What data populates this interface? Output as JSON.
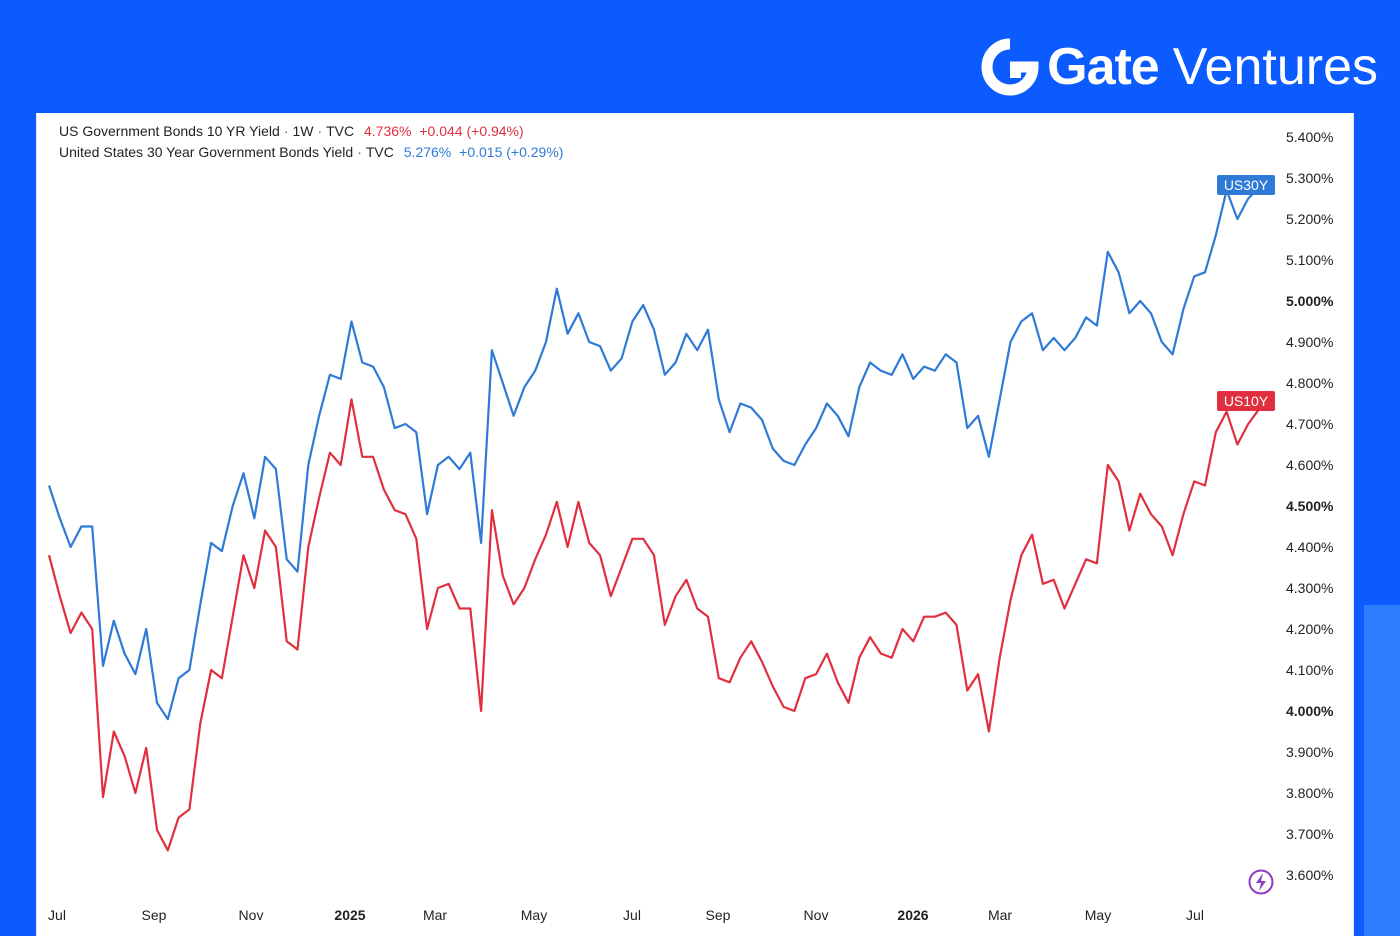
{
  "brand": {
    "name": "Gate",
    "suffix": "Ventures"
  },
  "colors": {
    "background": "#0b5bff",
    "us10y": "#e03040",
    "us30y": "#2f7ad6"
  },
  "legend": {
    "us10y": {
      "name": "US Government Bonds 10 YR Yield",
      "interval": "1W",
      "source": "TVC",
      "value": "4.736%",
      "change": "+0.044 (+0.94%)"
    },
    "us30y": {
      "name": "United States 30 Year Government Bonds Yield",
      "source": "TVC",
      "value": "5.276%",
      "change": "+0.015 (+0.29%)"
    }
  },
  "badge_icon": "lightning-icon",
  "chart_data": {
    "type": "line",
    "title": "",
    "xlabel": "",
    "ylabel": "",
    "ylim": [
      3.55,
      5.45
    ],
    "x_ticks": [
      "Jul",
      "Sep",
      "Nov",
      "2025",
      "Mar",
      "May",
      "Jul",
      "Sep",
      "Nov",
      "2026",
      "Mar",
      "May",
      "Jul"
    ],
    "y_ticks": [
      "5.400%",
      "5.300%",
      "5.200%",
      "5.100%",
      "5.000%",
      "4.900%",
      "4.800%",
      "4.700%",
      "4.600%",
      "4.500%",
      "4.400%",
      "4.300%",
      "4.200%",
      "4.100%",
      "4.000%",
      "3.900%",
      "3.800%",
      "3.700%",
      "3.600%"
    ],
    "y_ticks_bold": [
      "5.000%",
      "4.500%",
      "4.000%"
    ],
    "grid": false,
    "legend": "top-left",
    "series": [
      {
        "name": "US10Y",
        "values": [
          4.38,
          4.28,
          4.19,
          4.24,
          4.2,
          3.79,
          3.95,
          3.89,
          3.8,
          3.91,
          3.71,
          3.66,
          3.74,
          3.76,
          3.97,
          4.1,
          4.08,
          4.23,
          4.38,
          4.3,
          4.44,
          4.4,
          4.17,
          4.15,
          4.4,
          4.52,
          4.63,
          4.6,
          4.76,
          4.62,
          4.62,
          4.54,
          4.49,
          4.48,
          4.42,
          4.2,
          4.3,
          4.31,
          4.25,
          4.25,
          4.0,
          4.49,
          4.33,
          4.26,
          4.3,
          4.37,
          4.43,
          4.51,
          4.4,
          4.51,
          4.41,
          4.38,
          4.28,
          4.35,
          4.42,
          4.42,
          4.38,
          4.21,
          4.28,
          4.32,
          4.25,
          4.23,
          4.08,
          4.07,
          4.13,
          4.17,
          4.12,
          4.06,
          4.01,
          4.0,
          4.08,
          4.09,
          4.14,
          4.07,
          4.02,
          4.13,
          4.18,
          4.14,
          4.13,
          4.2,
          4.17,
          4.23,
          4.23,
          4.24,
          4.21,
          4.05,
          4.09,
          3.95,
          4.13,
          4.27,
          4.38,
          4.43,
          4.31,
          4.32,
          4.25,
          4.31,
          4.37,
          4.36,
          4.6,
          4.56,
          4.44,
          4.53,
          4.48,
          4.45,
          4.38,
          4.48,
          4.56,
          4.55,
          4.68,
          4.73,
          4.65,
          4.7,
          4.736
        ]
      },
      {
        "name": "US30Y",
        "values": [
          4.55,
          4.47,
          4.4,
          4.45,
          4.45,
          4.11,
          4.22,
          4.14,
          4.09,
          4.2,
          4.02,
          3.98,
          4.08,
          4.1,
          4.26,
          4.41,
          4.39,
          4.5,
          4.58,
          4.47,
          4.62,
          4.59,
          4.37,
          4.34,
          4.6,
          4.72,
          4.82,
          4.81,
          4.95,
          4.85,
          4.84,
          4.79,
          4.69,
          4.7,
          4.68,
          4.48,
          4.6,
          4.62,
          4.59,
          4.63,
          4.41,
          4.88,
          4.8,
          4.72,
          4.79,
          4.83,
          4.9,
          5.03,
          4.92,
          4.97,
          4.9,
          4.89,
          4.83,
          4.86,
          4.95,
          4.99,
          4.93,
          4.82,
          4.85,
          4.92,
          4.88,
          4.93,
          4.76,
          4.68,
          4.75,
          4.74,
          4.71,
          4.64,
          4.61,
          4.6,
          4.65,
          4.69,
          4.75,
          4.72,
          4.67,
          4.79,
          4.85,
          4.83,
          4.82,
          4.87,
          4.81,
          4.84,
          4.83,
          4.87,
          4.85,
          4.69,
          4.72,
          4.62,
          4.76,
          4.9,
          4.95,
          4.97,
          4.88,
          4.91,
          4.88,
          4.91,
          4.96,
          4.94,
          5.12,
          5.07,
          4.97,
          5.0,
          4.97,
          4.9,
          4.87,
          4.98,
          5.06,
          5.07,
          5.16,
          5.27,
          5.2,
          5.25,
          5.276
        ]
      }
    ]
  }
}
